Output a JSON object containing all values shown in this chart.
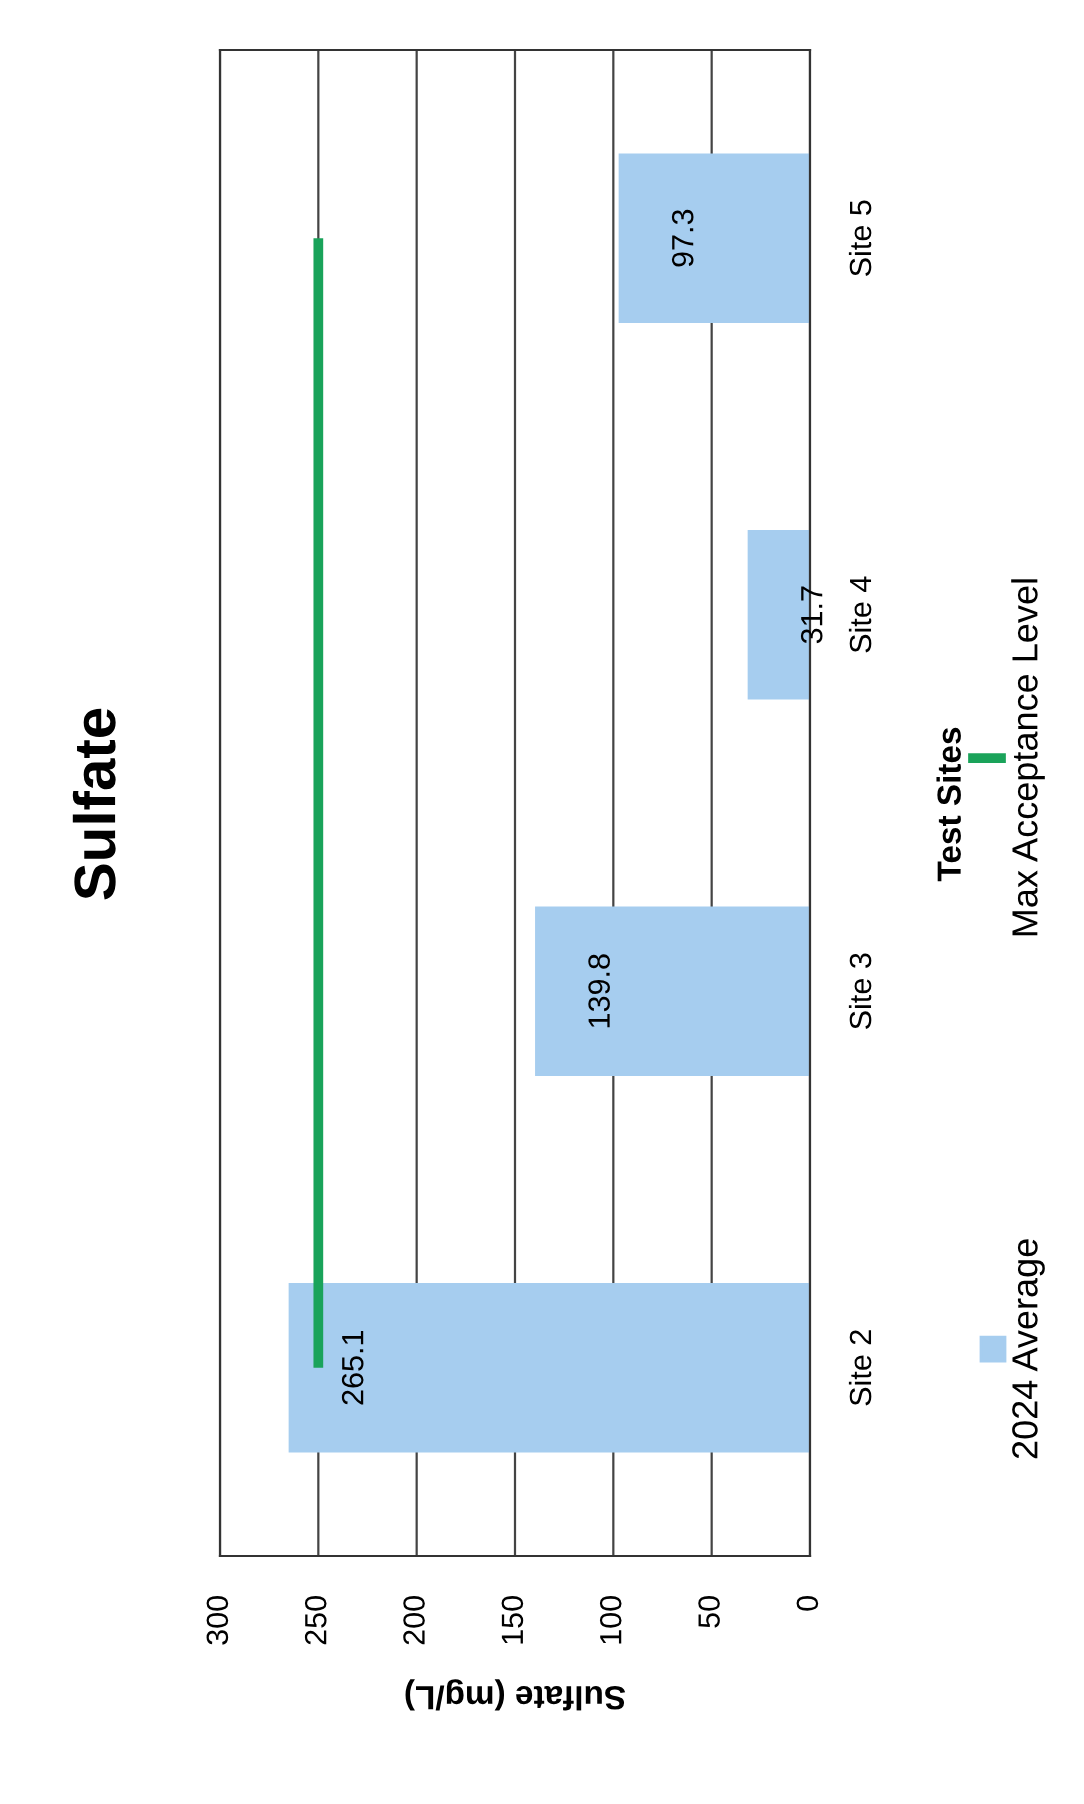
{
  "chart_data": {
    "type": "bar",
    "orientation": "horizontal",
    "title": "Sulfate",
    "xlabel": "Sulfate (mg/L)",
    "ylabel": "Test Sites",
    "categories": [
      "Site 5",
      "Site 4",
      "Site 3",
      "Site 2"
    ],
    "series": [
      {
        "name": "2024 Average",
        "color": "#a6cdef",
        "values": [
          97.3,
          31.7,
          139.8,
          265.1
        ],
        "value_labels": [
          "97.3",
          "31.7",
          "139.8",
          "265.1"
        ]
      },
      {
        "name": "Max Acceptance Level",
        "type": "line",
        "color": "#1aa35a",
        "values": [
          250,
          250,
          250,
          250
        ]
      }
    ],
    "xlim": [
      300,
      0
    ],
    "xticks": [
      300,
      250,
      200,
      150,
      100,
      50,
      0
    ],
    "grid": "x",
    "legend": "right"
  }
}
